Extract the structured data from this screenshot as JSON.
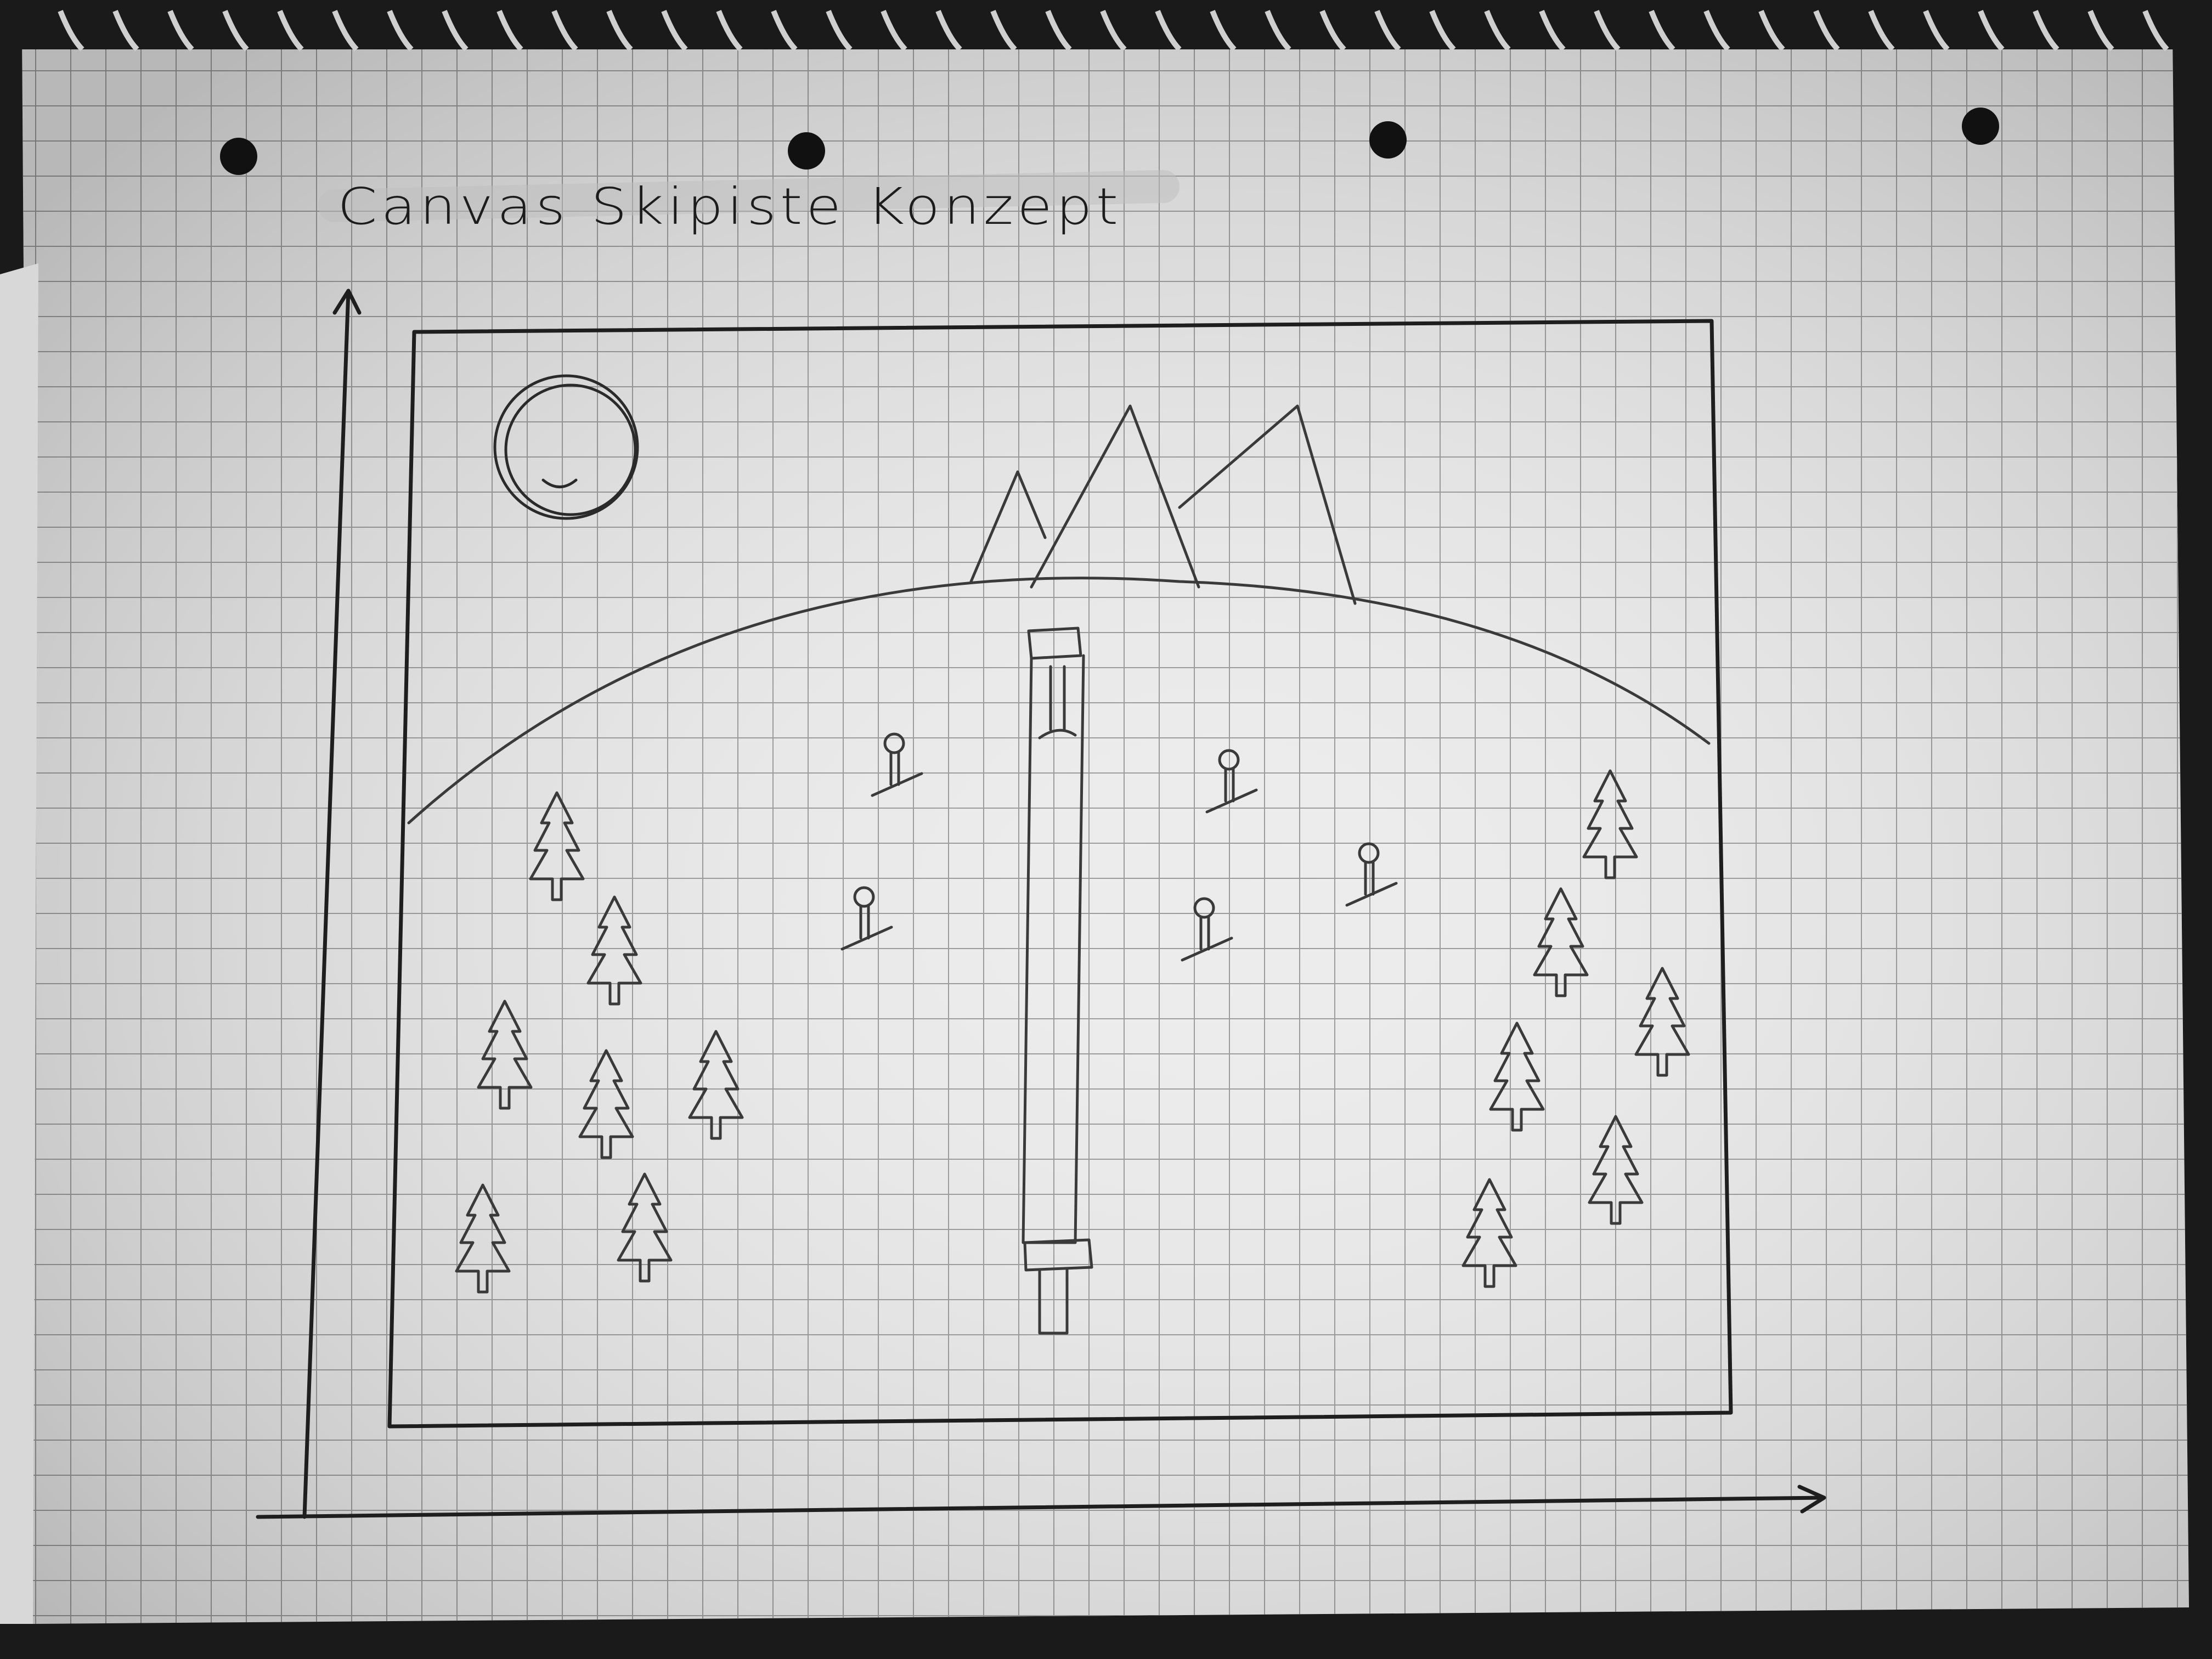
{
  "sketch": {
    "title": "Canvas Skipiste Konzept",
    "medium": "hand-drawn on grid notebook paper",
    "colors": {
      "paper": "#ededed",
      "grid": "#9a9a9a",
      "ink": "#1e1e1e",
      "background": "#1a1a1a"
    },
    "icons": {
      "sun": "sun-icon",
      "tree": "pine-tree-icon",
      "skier": "skier-icon",
      "mountain": "mountain-peak-icon",
      "lift": "ski-lift-icon"
    }
  }
}
